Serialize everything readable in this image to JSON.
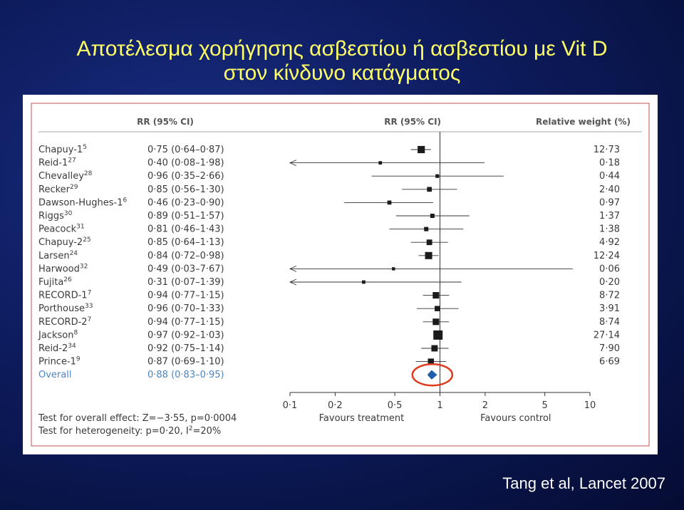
{
  "slide": {
    "title_line1": "Αποτέλεσμα χορήγησης ασβεστίου ή ασβεστίου με Vit D",
    "title_line2": "στον κίνδυνο κατάγματος",
    "citation": "Tang et al, Lancet 2007"
  },
  "colors": {
    "title": "#ffff66",
    "background": "#0d1c5e",
    "panel_border": "#c0504d",
    "overall": "#1f5fa8",
    "highlight_circle": "#e03a1e"
  },
  "chart_data": {
    "type": "forest",
    "headers": {
      "rr_text": "RR (95% CI)",
      "rr_plot": "RR (95% CI)",
      "weight": "Relative weight (%)"
    },
    "studies": [
      {
        "label": "Chapuy-1",
        "ref": "5",
        "rr": 0.75,
        "lo": 0.64,
        "hi": 0.87,
        "ci_text": "0·75 (0·64–0·87)",
        "weight": 12.73,
        "weight_text": "12·73"
      },
      {
        "label": "Reid-1",
        "ref": "27",
        "rr": 0.4,
        "lo": 0.08,
        "hi": 1.98,
        "ci_text": "0·40 (0·08–1·98)",
        "weight": 0.18,
        "weight_text": "0·18"
      },
      {
        "label": "Chevalley",
        "ref": "28",
        "rr": 0.96,
        "lo": 0.35,
        "hi": 2.66,
        "ci_text": "0·96 (0·35–2·66)",
        "weight": 0.44,
        "weight_text": "0·44"
      },
      {
        "label": "Recker",
        "ref": "29",
        "rr": 0.85,
        "lo": 0.56,
        "hi": 1.3,
        "ci_text": "0·85 (0·56–1·30)",
        "weight": 2.4,
        "weight_text": "2·40"
      },
      {
        "label": "Dawson-Hughes-1",
        "ref": "6",
        "rr": 0.46,
        "lo": 0.23,
        "hi": 0.9,
        "ci_text": "0·46 (0·23–0·90)",
        "weight": 0.97,
        "weight_text": "0·97"
      },
      {
        "label": "Riggs",
        "ref": "30",
        "rr": 0.89,
        "lo": 0.51,
        "hi": 1.57,
        "ci_text": "0·89 (0·51–1·57)",
        "weight": 1.37,
        "weight_text": "1·37"
      },
      {
        "label": "Peacock",
        "ref": "31",
        "rr": 0.81,
        "lo": 0.46,
        "hi": 1.43,
        "ci_text": "0·81 (0·46–1·43)",
        "weight": 1.38,
        "weight_text": "1·38"
      },
      {
        "label": "Chapuy-2",
        "ref": "25",
        "rr": 0.85,
        "lo": 0.64,
        "hi": 1.13,
        "ci_text": "0·85 (0·64–1·13)",
        "weight": 4.92,
        "weight_text": "4·92"
      },
      {
        "label": "Larsen",
        "ref": "24",
        "rr": 0.84,
        "lo": 0.72,
        "hi": 0.98,
        "ci_text": "0·84 (0·72–0·98)",
        "weight": 12.24,
        "weight_text": "12·24"
      },
      {
        "label": "Harwood",
        "ref": "32",
        "rr": 0.49,
        "lo": 0.03,
        "hi": 7.67,
        "ci_text": "0·49 (0·03–7·67)",
        "weight": 0.06,
        "weight_text": "0·06"
      },
      {
        "label": "Fujita",
        "ref": "26",
        "rr": 0.31,
        "lo": 0.07,
        "hi": 1.39,
        "ci_text": "0·31 (0·07–1·39)",
        "weight": 0.2,
        "weight_text": "0·20"
      },
      {
        "label": "RECORD-1",
        "ref": "7",
        "rr": 0.94,
        "lo": 0.77,
        "hi": 1.15,
        "ci_text": "0·94 (0·77–1·15)",
        "weight": 8.72,
        "weight_text": "8·72"
      },
      {
        "label": "Porthouse",
        "ref": "33",
        "rr": 0.96,
        "lo": 0.7,
        "hi": 1.33,
        "ci_text": "0·96 (0·70–1·33)",
        "weight": 3.91,
        "weight_text": "3·91"
      },
      {
        "label": "RECORD-2",
        "ref": "7",
        "rr": 0.94,
        "lo": 0.77,
        "hi": 1.15,
        "ci_text": "0·94 (0·77–1·15)",
        "weight": 8.74,
        "weight_text": "8·74"
      },
      {
        "label": "Jackson",
        "ref": "8",
        "rr": 0.97,
        "lo": 0.92,
        "hi": 1.03,
        "ci_text": "0·97 (0·92–1·03)",
        "weight": 27.14,
        "weight_text": "27·14"
      },
      {
        "label": "Reid-2",
        "ref": "34",
        "rr": 0.92,
        "lo": 0.75,
        "hi": 1.14,
        "ci_text": "0·92 (0·75–1·14)",
        "weight": 7.9,
        "weight_text": "7·90"
      },
      {
        "label": "Prince-1",
        "ref": "9",
        "rr": 0.87,
        "lo": 0.69,
        "hi": 1.1,
        "ci_text": "0·87 (0·69–1·10)",
        "weight": 6.69,
        "weight_text": "6·69"
      }
    ],
    "overall": {
      "label": "Overall",
      "rr": 0.88,
      "lo": 0.83,
      "hi": 0.95,
      "ci_text": "0·88 (0·83–0·95)"
    },
    "x_axis": {
      "scale": "log",
      "ticks": [
        0.1,
        0.2,
        0.5,
        1,
        2,
        5,
        10
      ],
      "tick_labels": [
        "0·1",
        "0·2",
        "0·5",
        "1",
        "2",
        "5",
        "10"
      ],
      "range": [
        0.1,
        10
      ]
    },
    "favours_left": "Favours treatment",
    "favours_right": "Favours control",
    "footnote_effect": "Test for overall effect: Z=−3·55, p=0·0004",
    "footnote_heterogeneity_prefix": "Test for heterogeneity: p=0·20, I",
    "footnote_heterogeneity_sup": "2",
    "footnote_heterogeneity_suffix": "=20%"
  }
}
